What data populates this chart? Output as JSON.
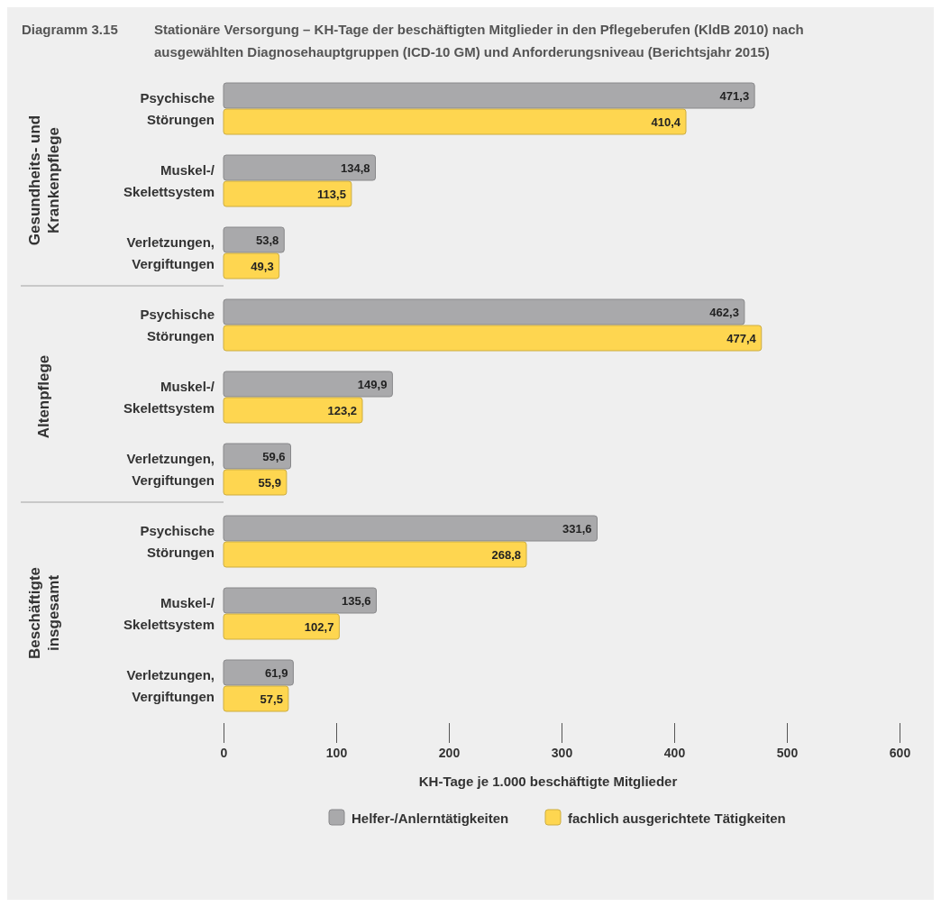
{
  "chart_data": [
    {
      "type": "bar",
      "orientation": "horizontal",
      "title": "Stationäre Versorgung – KH-Tage der beschäftigten Mitglieder in den Pflegeberufen (KldB 2010) nach ausgewählten Diagnosehauptgruppen (ICD-10 GM) und Anforderungsniveau (Berichtsjahr 2015)",
      "annotations": [
        "Diagramm 3.15"
      ],
      "ylabel": "Gesundheits- und Krankenpflege",
      "categories": [
        "Psychische Störungen",
        "Muskel-/Skelettsystem",
        "Verletzungen, Vergiftungen"
      ],
      "xlim": [
        0,
        600
      ],
      "xticks": [
        0,
        100,
        200,
        300,
        400,
        500,
        600
      ],
      "tick_labels": "y",
      "series": [
        {
          "color": "#a9a9ab",
          "values": [
            471.3,
            134.8,
            53.8
          ],
          "value_labels": [
            "471,3",
            "134,8",
            "53,8"
          ]
        },
        {
          "color": "#fed650",
          "values": [
            410.4,
            113.5,
            49.3
          ],
          "value_labels": [
            "410,4",
            "113,5",
            "49,3"
          ]
        }
      ]
    },
    {
      "type": "bar",
      "orientation": "horizontal",
      "ylabel": "Altenpflege",
      "categories": [
        "Psychische Störungen",
        "Muskel-/Skelettsystem",
        "Verletzungen, Vergiftungen"
      ],
      "xlim": [
        0,
        600
      ],
      "xticks": [
        0,
        100,
        200,
        300,
        400,
        500,
        600
      ],
      "tick_labels": "y",
      "series": [
        {
          "color": "#a9a9ab",
          "values": [
            462.3,
            149.9,
            59.6
          ],
          "value_labels": [
            "462,3",
            "149,9",
            "59,6"
          ]
        },
        {
          "color": "#fed650",
          "values": [
            477.4,
            123.2,
            55.9
          ],
          "value_labels": [
            "477,4",
            "123,2",
            "55,9"
          ]
        }
      ]
    },
    {
      "type": "bar",
      "orientation": "horizontal",
      "ylabel": "Beschäftigte insgesamt",
      "xlabel": "KH-Tage je 1.000 beschäftigte Mitglieder",
      "categories": [
        "Psychische Störungen",
        "Muskel-/Skelettsystem",
        "Verletzungen, Vergiftungen"
      ],
      "xlim": [
        0,
        600
      ],
      "xticks": [
        0,
        100,
        200,
        300,
        400,
        500,
        600
      ],
      "legend": "bottom",
      "series": [
        {
          "name": "Helfer-/Anlerntätigkeiten",
          "color": "#a9a9ab",
          "values": [
            331.6,
            135.6,
            61.9
          ],
          "value_labels": [
            "331,6",
            "135,6",
            "61,9"
          ]
        },
        {
          "name": "fachlich ausgerichtete Tätigkeiten",
          "color": "#fed650",
          "values": [
            268.8,
            102.7,
            57.5
          ],
          "value_labels": [
            "268,8",
            "102,7",
            "57,5"
          ]
        }
      ]
    }
  ]
}
